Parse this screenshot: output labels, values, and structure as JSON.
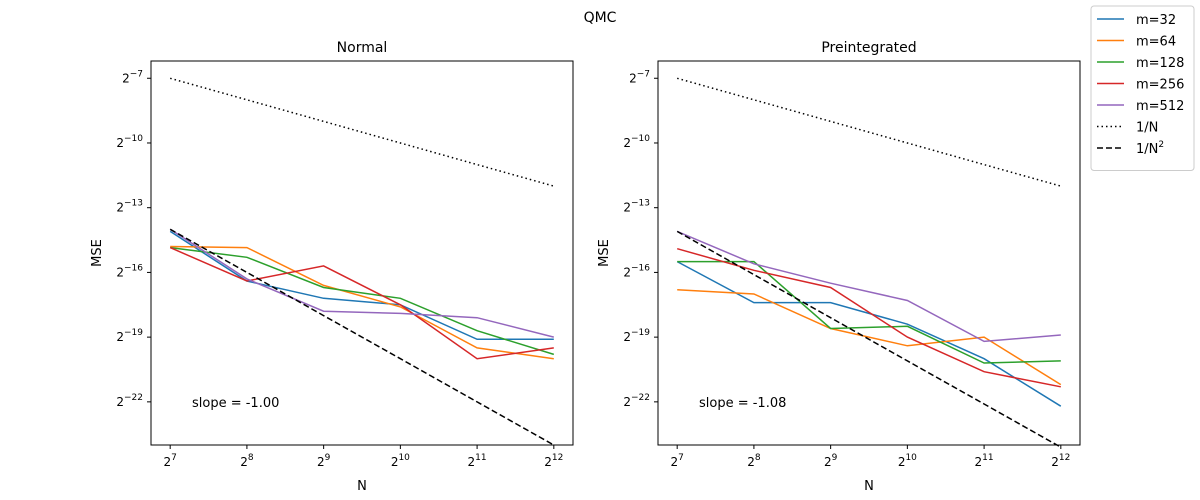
{
  "figure": {
    "suptitle": "QMC"
  },
  "legend": {
    "position": "top-right",
    "entries": [
      {
        "label": "m=32",
        "color": "#1f77b4",
        "style": "solid"
      },
      {
        "label": "m=64",
        "color": "#ff7f0e",
        "style": "solid"
      },
      {
        "label": "m=128",
        "color": "#2ca02c",
        "style": "solid"
      },
      {
        "label": "m=256",
        "color": "#d62728",
        "style": "solid"
      },
      {
        "label": "m=512",
        "color": "#9467bd",
        "style": "solid"
      },
      {
        "label": "1/N",
        "color": "#000000",
        "style": "dotted"
      },
      {
        "label": "1/N2",
        "color": "#000000",
        "style": "dashed"
      }
    ]
  },
  "chart_data": [
    {
      "type": "line",
      "title": "Normal",
      "xlabel": "N",
      "ylabel": "MSE",
      "x_scale": "log2",
      "y_scale": "log2",
      "x": [
        128,
        256,
        512,
        1024,
        2048,
        4096
      ],
      "x_tick_exponents": [
        "7",
        "8",
        "9",
        "10",
        "11",
        "12"
      ],
      "y_tick_exponents": [
        "-7",
        "-10",
        "-13",
        "-16",
        "-19",
        "-22"
      ],
      "xlim_exp": [
        6.75,
        12.25
      ],
      "ylim_exp": [
        -24.0,
        -6.2
      ],
      "annotation": "slope = -1.00",
      "series": [
        {
          "name": "m=32",
          "log2_values": [
            -14.1,
            -16.4,
            -17.2,
            -17.5,
            -19.1,
            -19.1
          ]
        },
        {
          "name": "m=64",
          "log2_values": [
            -14.8,
            -14.85,
            -16.6,
            -17.6,
            -19.5,
            -20.0
          ]
        },
        {
          "name": "m=128",
          "log2_values": [
            -14.85,
            -15.3,
            -16.7,
            -17.2,
            -18.7,
            -19.8
          ]
        },
        {
          "name": "m=256",
          "log2_values": [
            -14.85,
            -16.4,
            -15.7,
            -17.5,
            -20.0,
            -19.5
          ]
        },
        {
          "name": "m=512",
          "log2_values": [
            -14.0,
            -16.3,
            -17.8,
            -17.9,
            -18.1,
            -19.0
          ]
        },
        {
          "name": "1/N",
          "log2_values": [
            -7.0,
            -8.0,
            -9.0,
            -10.0,
            -11.0,
            -12.0
          ]
        },
        {
          "name": "1/N2",
          "log2_values": [
            -14.0,
            -16.0,
            -18.0,
            -20.0,
            -22.0,
            -24.0
          ]
        }
      ]
    },
    {
      "type": "line",
      "title": "Preintegrated",
      "xlabel": "N",
      "ylabel": "MSE",
      "x_scale": "log2",
      "y_scale": "log2",
      "x": [
        128,
        256,
        512,
        1024,
        2048,
        4096
      ],
      "x_tick_exponents": [
        "7",
        "8",
        "9",
        "10",
        "11",
        "12"
      ],
      "y_tick_exponents": [
        "-7",
        "-10",
        "-13",
        "-16",
        "-19",
        "-22"
      ],
      "xlim_exp": [
        6.75,
        12.25
      ],
      "ylim_exp": [
        -24.0,
        -6.2
      ],
      "annotation": "slope = -1.08",
      "series": [
        {
          "name": "m=32",
          "log2_values": [
            -15.5,
            -17.4,
            -17.4,
            -18.4,
            -20.0,
            -22.2
          ]
        },
        {
          "name": "m=64",
          "log2_values": [
            -16.8,
            -17.0,
            -18.6,
            -19.4,
            -19.0,
            -21.2
          ]
        },
        {
          "name": "m=128",
          "log2_values": [
            -15.5,
            -15.5,
            -18.6,
            -18.5,
            -20.2,
            -20.1
          ]
        },
        {
          "name": "m=256",
          "log2_values": [
            -14.9,
            -15.9,
            -16.7,
            -19.0,
            -20.6,
            -21.3
          ]
        },
        {
          "name": "m=512",
          "log2_values": [
            -14.1,
            -15.6,
            -16.5,
            -17.3,
            -19.2,
            -18.9
          ]
        },
        {
          "name": "1/N",
          "log2_values": [
            -7.0,
            -8.0,
            -9.0,
            -10.0,
            -11.0,
            -12.0
          ]
        },
        {
          "name": "1/N2",
          "log2_values": [
            -14.1,
            -16.1,
            -18.1,
            -20.1,
            -22.1,
            -24.1
          ]
        }
      ]
    }
  ]
}
